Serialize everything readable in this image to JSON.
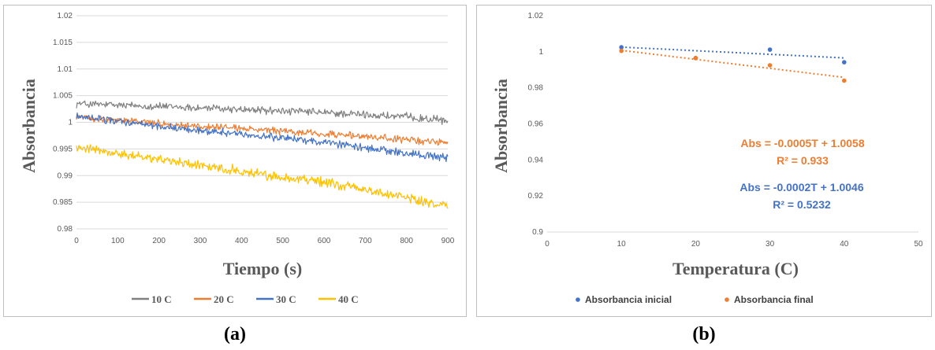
{
  "panels": {
    "a": {
      "caption": "(a)"
    },
    "b": {
      "caption": "(b)"
    }
  },
  "chart_data": [
    {
      "type": "line",
      "title": "",
      "xlabel": "Tiempo (s)",
      "ylabel": "Absorbancia",
      "xlim": [
        0,
        900
      ],
      "ylim": [
        0.98,
        1.02
      ],
      "x_ticks": [
        0,
        100,
        200,
        300,
        400,
        500,
        600,
        700,
        800,
        900
      ],
      "y_ticks": [
        0.98,
        0.985,
        0.99,
        0.995,
        1,
        1.005,
        1.01,
        1.015,
        1.02
      ],
      "y_tick_labels": [
        "0.98",
        "0.985",
        "0.99",
        "0.995",
        "1",
        "1.005",
        "1.01",
        "1.015",
        "1.02"
      ],
      "grid": "horizontal",
      "legend_position": "bottom",
      "series": [
        {
          "name": "10 C",
          "color": "#808080",
          "x": [
            0,
            100,
            200,
            300,
            400,
            500,
            600,
            700,
            800,
            900
          ],
          "values": [
            1.0035,
            1.0032,
            1.003,
            1.0027,
            1.0024,
            1.0021,
            1.0018,
            1.0014,
            1.001,
            1.0003
          ]
        },
        {
          "name": "20 C",
          "color": "#ed7d31",
          "x": [
            0,
            100,
            200,
            300,
            400,
            500,
            600,
            700,
            800,
            900
          ],
          "values": [
            1.001,
            1.0005,
            0.9998,
            0.9992,
            0.9988,
            0.9983,
            0.9978,
            0.9973,
            0.9967,
            0.9962
          ]
        },
        {
          "name": "30 C",
          "color": "#4472c4",
          "x": [
            0,
            100,
            200,
            300,
            400,
            500,
            600,
            700,
            800,
            900
          ],
          "values": [
            1.001,
            1.0002,
            0.9992,
            0.9985,
            0.9978,
            0.9971,
            0.9962,
            0.9952,
            0.9942,
            0.9932
          ]
        },
        {
          "name": "40 C",
          "color": "#ffc000",
          "x": [
            0,
            100,
            200,
            300,
            400,
            500,
            600,
            700,
            800,
            900
          ],
          "values": [
            0.9955,
            0.9942,
            0.993,
            0.992,
            0.9908,
            0.9897,
            0.9888,
            0.9874,
            0.9858,
            0.9842
          ]
        }
      ]
    },
    {
      "type": "scatter",
      "title": "",
      "xlabel": "Temperatura (C)",
      "ylabel": "Absorbancia",
      "xlim": [
        0,
        50
      ],
      "ylim": [
        0.9,
        1.02
      ],
      "x_ticks": [
        0,
        10,
        20,
        30,
        40,
        50
      ],
      "y_ticks": [
        0.9,
        0.92,
        0.94,
        0.96,
        0.98,
        1,
        1.02
      ],
      "y_tick_labels": [
        "0.9",
        "0.92",
        "0.94",
        "0.96",
        "0.98",
        "1",
        "1.02"
      ],
      "grid": "none",
      "legend_position": "bottom",
      "series": [
        {
          "name": "Absorbancia inicial",
          "color": "#4472c4",
          "x": [
            10,
            20,
            30,
            40
          ],
          "values": [
            1.0025,
            0.9965,
            1.0012,
            0.9942
          ],
          "trendline": {
            "slope": -0.0002,
            "intercept": 1.0046,
            "equation": "Abs = -0.0002T + 1.0046",
            "r2": "R² = 0.5232"
          }
        },
        {
          "name": "Absorbancia final",
          "color": "#ed7d31",
          "x": [
            10,
            20,
            30,
            40
          ],
          "values": [
            1.0005,
            0.9965,
            0.9925,
            0.984
          ],
          "trendline": {
            "slope": -0.0005,
            "intercept": 1.0058,
            "equation": "Abs = -0.0005T + 1.0058",
            "r2": "R² = 0.933"
          }
        }
      ]
    }
  ]
}
